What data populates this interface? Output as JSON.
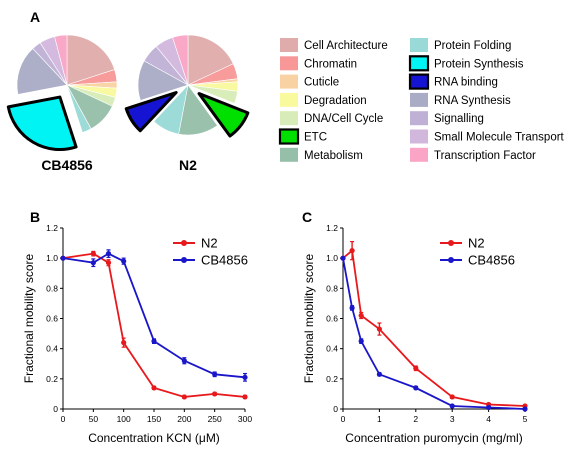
{
  "panels": {
    "A": "A",
    "B": "B",
    "C": "C"
  },
  "colors": {
    "red": "#e8191c",
    "blue": "#1a16c9"
  },
  "chart_data": [
    {
      "type": "pie",
      "panel": "A",
      "categories": [
        {
          "name": "Cell Architecture",
          "color": "#d4908f"
        },
        {
          "name": "Chromatin",
          "color": "#f47474"
        },
        {
          "name": "Cuticle",
          "color": "#f5c383"
        },
        {
          "name": "Degradation",
          "color": "#f7f77e"
        },
        {
          "name": "DNA/Cell Cycle",
          "color": "#c9e6a0"
        },
        {
          "name": "ETC",
          "color": "#00e000"
        },
        {
          "name": "Metabolism",
          "color": "#73a98c"
        },
        {
          "name": "Protein Folding",
          "color": "#77cdcb"
        },
        {
          "name": "Protein Synthesis",
          "color": "#00f4f4"
        },
        {
          "name": "RNA binding",
          "color": "#1414d2"
        },
        {
          "name": "RNA Synthesis",
          "color": "#8e8fb2"
        },
        {
          "name": "Signalling",
          "color": "#aa97c8"
        },
        {
          "name": "Small Molecule Transport",
          "color": "#c39fd2"
        },
        {
          "name": "Transcription Factor",
          "color": "#f887b2"
        }
      ],
      "pies": [
        {
          "label": "CB4856",
          "highlight": [
            "Protein Synthesis"
          ],
          "slices": [
            {
              "name": "Cell Architecture",
              "value": 20
            },
            {
              "name": "Chromatin",
              "value": 4
            },
            {
              "name": "Cuticle",
              "value": 2
            },
            {
              "name": "Degradation",
              "value": 3
            },
            {
              "name": "DNA/Cell Cycle",
              "value": 3
            },
            {
              "name": "Metabolism",
              "value": 10
            },
            {
              "name": "Protein Folding",
              "value": 3
            },
            {
              "name": "Protein Synthesis",
              "value": 27
            },
            {
              "name": "RNA binding",
              "value": 0
            },
            {
              "name": "RNA Synthesis",
              "value": 16
            },
            {
              "name": "Signalling",
              "value": 3
            },
            {
              "name": "Small Molecule Transport",
              "value": 5
            },
            {
              "name": "Transcription Factor",
              "value": 4
            }
          ]
        },
        {
          "label": "N2",
          "highlight": [
            "ETC",
            "RNA binding"
          ],
          "slices": [
            {
              "name": "Cell Architecture",
              "value": 18
            },
            {
              "name": "Chromatin",
              "value": 5
            },
            {
              "name": "Cuticle",
              "value": 1
            },
            {
              "name": "Degradation",
              "value": 3
            },
            {
              "name": "DNA/Cell Cycle",
              "value": 4
            },
            {
              "name": "ETC",
              "value": 9
            },
            {
              "name": "Metabolism",
              "value": 13
            },
            {
              "name": "Protein Folding",
              "value": 9
            },
            {
              "name": "RNA binding",
              "value": 8
            },
            {
              "name": "RNA Synthesis",
              "value": 13
            },
            {
              "name": "Signalling",
              "value": 6
            },
            {
              "name": "Small Molecule Transport",
              "value": 6
            },
            {
              "name": "Transcription Factor",
              "value": 5
            }
          ]
        }
      ]
    },
    {
      "type": "line",
      "panel": "B",
      "xlabel": "Concentration KCN (μM)",
      "ylabel": "Fractional mobility score",
      "xlim": [
        0,
        300
      ],
      "ylim": [
        0,
        1.2
      ],
      "xticks": [
        "0",
        "50",
        "100",
        "150",
        "200",
        "250",
        "300"
      ],
      "yticks": [
        "0",
        "0.2",
        "0.4",
        "0.6",
        "0.8",
        "1.0",
        "1.2"
      ],
      "legend_position": "top-right",
      "series": [
        {
          "name": "N2",
          "color": "#e8191c",
          "x": [
            0,
            50,
            75,
            100,
            150,
            200,
            250,
            300
          ],
          "y": [
            1.0,
            1.03,
            0.97,
            0.44,
            0.14,
            0.08,
            0.1,
            0.08
          ],
          "err": [
            0,
            0.015,
            0.02,
            0.03,
            0.01,
            0.01,
            0.01,
            0.01
          ]
        },
        {
          "name": "CB4856",
          "color": "#1a16c9",
          "x": [
            0,
            50,
            75,
            100,
            150,
            200,
            250,
            300
          ],
          "y": [
            1.0,
            0.97,
            1.03,
            0.98,
            0.45,
            0.32,
            0.23,
            0.21
          ],
          "err": [
            0,
            0.025,
            0.025,
            0.02,
            0.015,
            0.02,
            0.015,
            0.025
          ]
        }
      ]
    },
    {
      "type": "line",
      "panel": "C",
      "xlabel": "Concentration puromycin (mg/ml)",
      "ylabel": "Fractional mobility score",
      "xlim": [
        0,
        5
      ],
      "ylim": [
        0,
        1.2
      ],
      "xticks": [
        "0",
        "1",
        "2",
        "3",
        "4",
        "5"
      ],
      "yticks": [
        "0",
        "0.2",
        "0.4",
        "0.6",
        "0.8",
        "1.0",
        "1.2"
      ],
      "legend_position": "top-right",
      "series": [
        {
          "name": "N2",
          "color": "#e8191c",
          "x": [
            0,
            0.25,
            0.5,
            1,
            2,
            3,
            4,
            5
          ],
          "y": [
            1.0,
            1.05,
            0.62,
            0.53,
            0.27,
            0.08,
            0.03,
            0.02
          ],
          "err": [
            0,
            0.06,
            0.02,
            0.04,
            0.015,
            0.01,
            0.005,
            0.005
          ]
        },
        {
          "name": "CB4856",
          "color": "#1a16c9",
          "x": [
            0,
            0.25,
            0.5,
            1,
            2,
            3,
            4,
            5
          ],
          "y": [
            1.0,
            0.67,
            0.45,
            0.23,
            0.14,
            0.02,
            0.01,
            0.0
          ],
          "err": [
            0,
            0.015,
            0.015,
            0.01,
            0.01,
            0.005,
            0.005,
            0.005
          ]
        }
      ]
    }
  ]
}
